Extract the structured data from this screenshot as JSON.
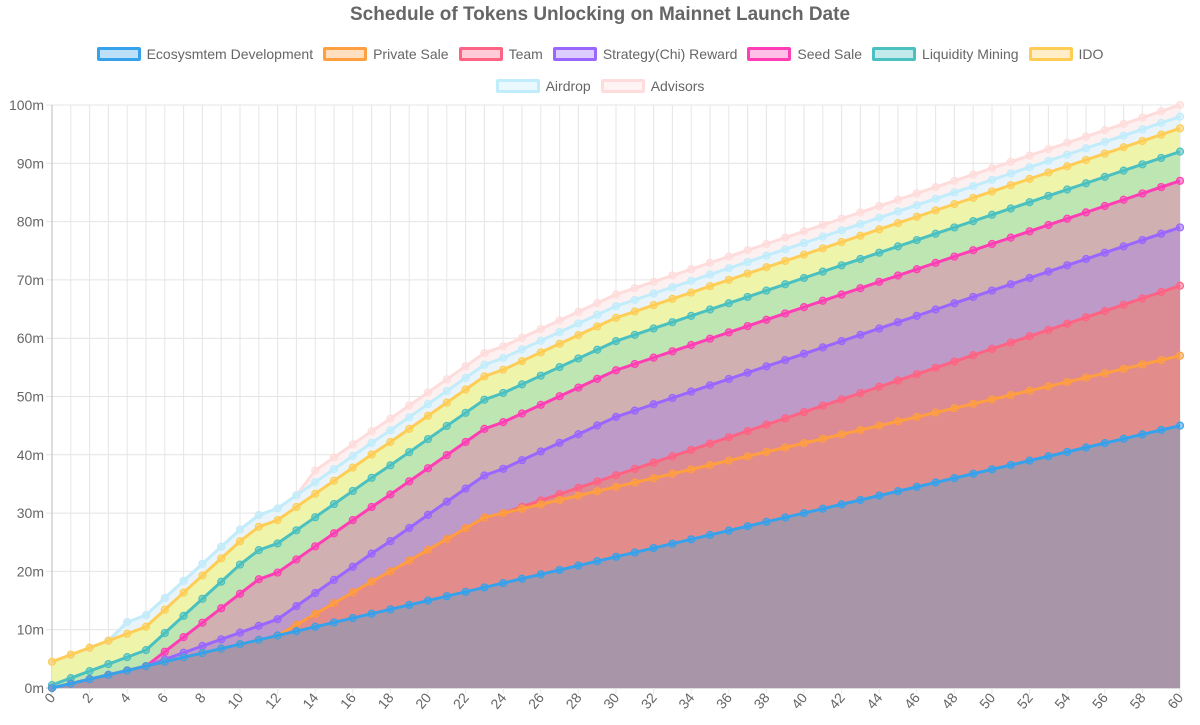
{
  "chart_data": {
    "type": "area",
    "stacked": true,
    "title": "Schedule of Tokens Unlocking on Mainnet Launch Date",
    "xlabel": "",
    "ylabel": "",
    "xlim": [
      0,
      60
    ],
    "ylim": [
      0,
      100
    ],
    "y_unit_suffix": "m",
    "x_tick_step": 2,
    "y_tick_step": 10,
    "grid": true,
    "legend_position": "top",
    "series": [
      {
        "name": "Ecosysmtem Development",
        "color": "#36a2eb",
        "fill": "#a995a8",
        "values": [
          0,
          0.75,
          1.5,
          2.25,
          3,
          3.75,
          4.5,
          5.25,
          6,
          6.75,
          7.5,
          8.25,
          9,
          9.75,
          10.5,
          11.25,
          12,
          12.75,
          13.5,
          14.25,
          15,
          15.75,
          16.5,
          17.25,
          18,
          18.75,
          19.5,
          20.25,
          21,
          21.75,
          22.5,
          23.25,
          24,
          24.75,
          25.5,
          26.25,
          27,
          27.75,
          28.5,
          29.25,
          30,
          30.75,
          31.5,
          32.25,
          33,
          33.75,
          34.5,
          35.25,
          36,
          36.75,
          37.5,
          38.25,
          39,
          39.75,
          40.5,
          41.25,
          42,
          42.75,
          43.5,
          44.25,
          45
        ]
      },
      {
        "name": "Private Sale",
        "color": "#ff9f40",
        "fill": "#e28c8b",
        "values": [
          0,
          0,
          0,
          0,
          0,
          0,
          0,
          0,
          0,
          0,
          0,
          0,
          0,
          1.1,
          2.2,
          3.3,
          4.4,
          5.5,
          6.5,
          7.6,
          8.7,
          9.8,
          10.9,
          12,
          12,
          12,
          12,
          12,
          12,
          12,
          12,
          12,
          12,
          12,
          12,
          12,
          12,
          12,
          12,
          12,
          12,
          12,
          12,
          12,
          12,
          12,
          12,
          12,
          12,
          12,
          12,
          12,
          12,
          12,
          12,
          12,
          12,
          12,
          12,
          12,
          12
        ]
      },
      {
        "name": "Team",
        "color": "#ff6384",
        "fill": "#dc8b95",
        "values": [
          0,
          0,
          0,
          0,
          0,
          0,
          0,
          0,
          0,
          0,
          0,
          0,
          0,
          0,
          0,
          0,
          0,
          0,
          0,
          0,
          0,
          0,
          0,
          0,
          0,
          0.33,
          0.67,
          1,
          1.33,
          1.67,
          2,
          2.33,
          2.67,
          3,
          3.33,
          3.67,
          4,
          4.33,
          4.67,
          5,
          5.33,
          5.67,
          6,
          6.33,
          6.67,
          7,
          7.33,
          7.67,
          8,
          8.33,
          8.67,
          9,
          9.33,
          9.67,
          10,
          10.33,
          10.67,
          11,
          11.33,
          11.67,
          12
        ]
      },
      {
        "name": "Strategy(Chi) Reward",
        "color": "#9966ff",
        "fill": "#be9ac8",
        "values": [
          0,
          0,
          0,
          0,
          0,
          0,
          0.4,
          0.8,
          1.2,
          1.6,
          2,
          2.4,
          2.8,
          3.2,
          3.6,
          4,
          4.4,
          4.8,
          5.2,
          5.6,
          6,
          6.4,
          6.8,
          7.2,
          7.6,
          8,
          8.4,
          8.8,
          9.2,
          9.6,
          10,
          10,
          10,
          10,
          10,
          10,
          10,
          10,
          10,
          10,
          10,
          10,
          10,
          10,
          10,
          10,
          10,
          10,
          10,
          10,
          10,
          10,
          10,
          10,
          10,
          10,
          10,
          10,
          10,
          10,
          10
        ]
      },
      {
        "name": "Seed Sale",
        "color": "#ff3eb5",
        "fill": "#d0b0b0",
        "values": [
          0,
          0,
          0,
          0,
          0,
          0,
          1.33,
          2.67,
          4,
          5.33,
          6.67,
          8,
          8,
          8,
          8,
          8,
          8,
          8,
          8,
          8,
          8,
          8,
          8,
          8,
          8,
          8,
          8,
          8,
          8,
          8,
          8,
          8,
          8,
          8,
          8,
          8,
          8,
          8,
          8,
          8,
          8,
          8,
          8,
          8,
          8,
          8,
          8,
          8,
          8,
          8,
          8,
          8,
          8,
          8,
          8,
          8,
          8,
          8,
          8,
          8,
          8
        ]
      },
      {
        "name": "Liquidity Mining",
        "color": "#4bc0c0",
        "fill": "#bde6b3",
        "values": [
          0.5,
          0.95,
          1.4,
          1.85,
          2.3,
          2.75,
          3.2,
          3.65,
          4.1,
          4.55,
          5,
          5,
          5,
          5,
          5,
          5,
          5,
          5,
          5,
          5,
          5,
          5,
          5,
          5,
          5,
          5,
          5,
          5,
          5,
          5,
          5,
          5,
          5,
          5,
          5,
          5,
          5,
          5,
          5,
          5,
          5,
          5,
          5,
          5,
          5,
          5,
          5,
          5,
          5,
          5,
          5,
          5,
          5,
          5,
          5,
          5,
          5,
          5,
          5,
          5,
          5
        ]
      },
      {
        "name": "IDO",
        "color": "#ffcd56",
        "fill": "#eef5ab",
        "values": [
          4,
          4,
          4,
          4,
          4,
          4,
          4,
          4,
          4,
          4,
          4,
          4,
          4,
          4,
          4,
          4,
          4,
          4,
          4,
          4,
          4,
          4,
          4,
          4,
          4,
          4,
          4,
          4,
          4,
          4,
          4,
          4,
          4,
          4,
          4,
          4,
          4,
          4,
          4,
          4,
          4,
          4,
          4,
          4,
          4,
          4,
          4,
          4,
          4,
          4,
          4,
          4,
          4,
          4,
          4,
          4,
          4,
          4,
          4,
          4,
          4
        ]
      },
      {
        "name": "Airdrop",
        "color": "#c0ecfb",
        "fill": "#e8f4fa",
        "values": [
          0,
          0,
          0,
          0,
          2,
          2,
          2,
          2,
          2,
          2,
          2,
          2,
          2,
          2,
          2,
          2,
          2,
          2,
          2,
          2,
          2,
          2,
          2,
          2,
          2,
          2,
          2,
          2,
          2,
          2,
          2,
          2,
          2,
          2,
          2,
          2,
          2,
          2,
          2,
          2,
          2,
          2,
          2,
          2,
          2,
          2,
          2,
          2,
          2,
          2,
          2,
          2,
          2,
          2,
          2,
          2,
          2,
          2,
          2,
          2,
          2
        ]
      },
      {
        "name": "Advisors",
        "color": "#ffdcdc",
        "fill": "#fdf0f0",
        "values": [
          0,
          0,
          0,
          0,
          0,
          0,
          0,
          0,
          0,
          0,
          0,
          0,
          0,
          0,
          2,
          2,
          2,
          2,
          2,
          2,
          2,
          2,
          2,
          2,
          2,
          2,
          2,
          2,
          2,
          2,
          2,
          2,
          2,
          2,
          2,
          2,
          2,
          2,
          2,
          2,
          2,
          2,
          2,
          2,
          2,
          2,
          2,
          2,
          2,
          2,
          2,
          2,
          2,
          2,
          2,
          2,
          2,
          2,
          2,
          2,
          2
        ]
      }
    ]
  }
}
